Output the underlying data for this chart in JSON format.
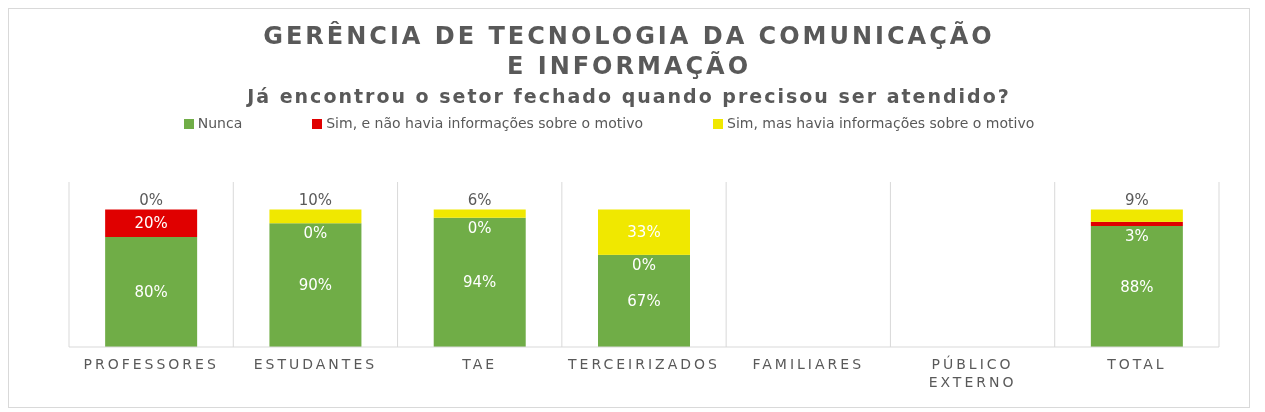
{
  "chart_data": {
    "type": "bar",
    "title": "GERÊNCIA DE TECNOLOGIA DA COMUNICAÇÃO E INFORMAÇÃO",
    "subtitle": "Já encontrou o setor fechado quando precisou ser atendido?",
    "categories": [
      "PROFESSORES",
      "ESTUDANTES",
      "TAE",
      "TERCEIRIZADOS",
      "FAMILIARES",
      "PÚBLICO EXTERNO",
      "TOTAL"
    ],
    "stacked": true,
    "grid": "x",
    "legend": "top",
    "tick_labels": "x",
    "series": [
      {
        "name": "Nunca",
        "color": "#70ad47",
        "values": [
          80,
          90,
          94,
          67,
          0,
          0,
          88
        ],
        "value_labels": [
          "80%",
          "90%",
          "94%",
          "67%",
          null,
          null,
          "88%"
        ]
      },
      {
        "name": "Sim, e não havia informações sobre o motivo",
        "color": "#e00000",
        "values": [
          20,
          0,
          0,
          0,
          0,
          0,
          3
        ],
        "value_labels": [
          "20%",
          "0%",
          "0%",
          "0%",
          null,
          null,
          "3%"
        ]
      },
      {
        "name": "Sim, mas havia informações sobre o motivo",
        "color": "#f0e800",
        "values": [
          0,
          10,
          6,
          33,
          0,
          0,
          9
        ],
        "value_labels": [
          "0%",
          "10%",
          "6%",
          "33%",
          null,
          null,
          "9%"
        ]
      }
    ]
  }
}
